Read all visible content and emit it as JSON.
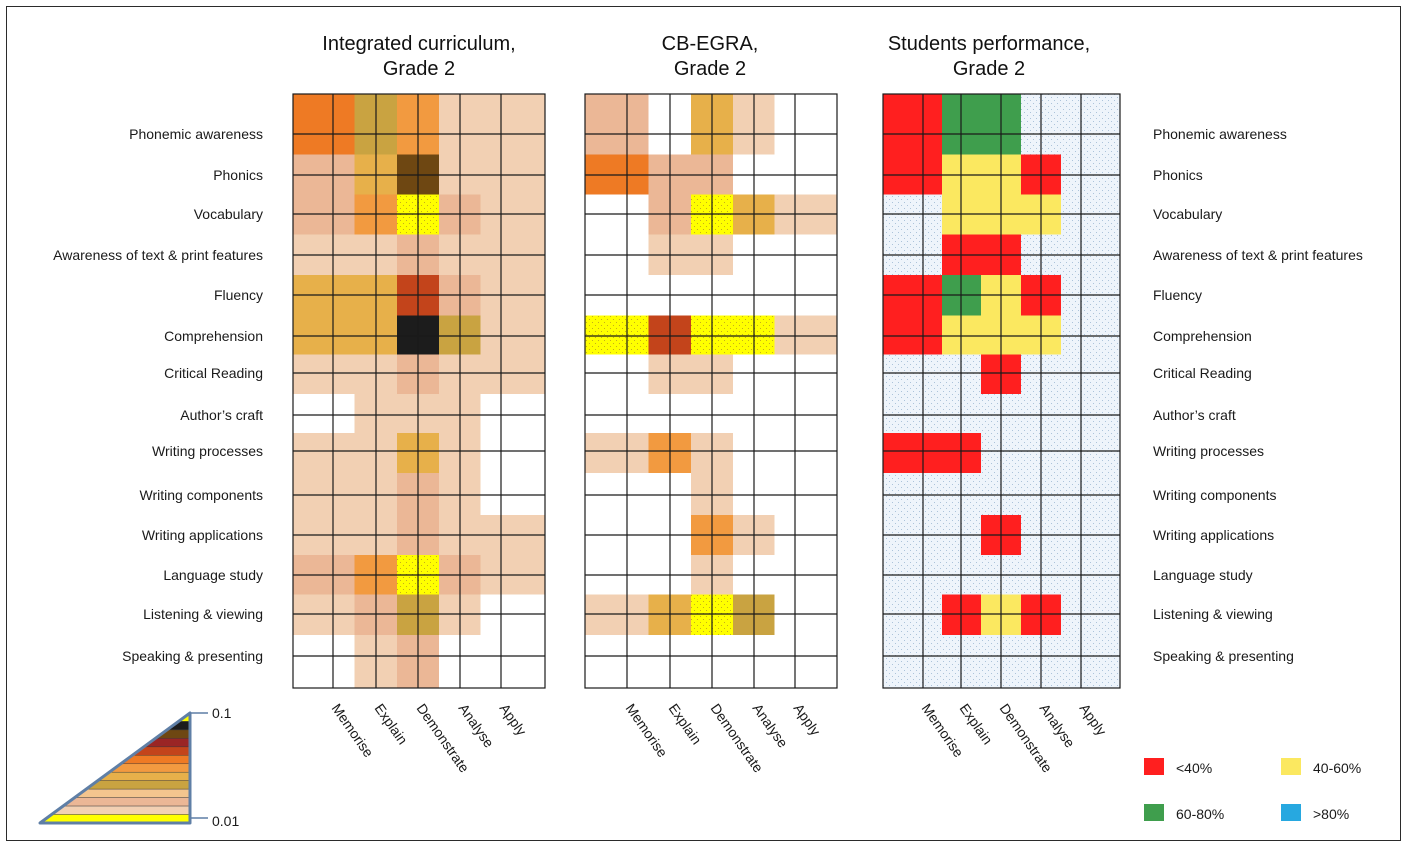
{
  "chart_data": {
    "type": "heatmap",
    "rows": [
      "Phonemic awareness",
      "Phonics",
      "Vocabulary",
      "Awareness of text & print features",
      "Fluency",
      "Comprehension",
      "Critical Reading",
      "Author’s craft",
      "Writing processes",
      "Writing components",
      "Writing applications",
      "Language study",
      "Listening & viewing",
      "Speaking & presenting"
    ],
    "columns": [
      "Memorise",
      "Explain",
      "Demonstrate",
      "Analyse",
      "Apply"
    ],
    "panels": [
      {
        "title": "Integrated curriculum,\nGrade 2",
        "scale": "density",
        "density": [
          [
            0.06,
            0.03,
            0.05,
            0.01,
            0.01
          ],
          [
            0.02,
            0.04,
            0.08,
            0.01,
            0.01
          ],
          [
            0.02,
            0.05,
            0.1,
            0.02,
            0.01
          ],
          [
            0.01,
            0.01,
            0.02,
            0.01,
            0.01
          ],
          [
            0.04,
            0.04,
            0.07,
            0.02,
            0.01
          ],
          [
            0.04,
            0.04,
            0.09,
            0.03,
            0.01
          ],
          [
            0.01,
            0.01,
            0.02,
            0.01,
            0.01
          ],
          [
            0.0,
            0.01,
            0.01,
            0.01,
            0.0
          ],
          [
            0.01,
            0.01,
            0.04,
            0.01,
            0.0
          ],
          [
            0.01,
            0.01,
            0.02,
            0.01,
            0.0
          ],
          [
            0.01,
            0.01,
            0.02,
            0.01,
            0.01
          ],
          [
            0.02,
            0.05,
            0.1,
            0.02,
            0.01
          ],
          [
            0.01,
            0.02,
            0.03,
            0.01,
            0.0
          ],
          [
            0.0,
            0.01,
            0.02,
            0.0,
            0.0
          ]
        ]
      },
      {
        "title": "CB-EGRA,\nGrade 2",
        "scale": "density",
        "density": [
          [
            0.02,
            0.0,
            0.04,
            0.01,
            0.0
          ],
          [
            0.06,
            0.02,
            0.02,
            0.0,
            0.0
          ],
          [
            0.0,
            0.02,
            0.1,
            0.04,
            0.01
          ],
          [
            0.0,
            0.01,
            0.01,
            0.0,
            0.0
          ],
          [
            0.0,
            0.0,
            0.0,
            0.0,
            0.0
          ],
          [
            0.1,
            0.07,
            0.1,
            0.1,
            0.01
          ],
          [
            0.0,
            0.01,
            0.01,
            0.0,
            0.0
          ],
          [
            0.0,
            0.0,
            0.0,
            0.0,
            0.0
          ],
          [
            0.01,
            0.05,
            0.01,
            0.0,
            0.0
          ],
          [
            0.0,
            0.0,
            0.01,
            0.0,
            0.0
          ],
          [
            0.0,
            0.0,
            0.05,
            0.01,
            0.0
          ],
          [
            0.0,
            0.0,
            0.01,
            0.0,
            0.0
          ],
          [
            0.01,
            0.04,
            0.1,
            0.03,
            0.0
          ],
          [
            0.0,
            0.0,
            0.0,
            0.0,
            0.0
          ]
        ]
      },
      {
        "title": "Students performance,\nGrade 2",
        "scale": "performance",
        "performance_band": [
          [
            "<40%",
            "60-80%",
            "60-80%",
            "-",
            "-"
          ],
          [
            "<40%",
            "40-60%",
            "40-60%",
            "<40%",
            "-"
          ],
          [
            "-",
            "40-60%",
            "40-60%",
            "40-60%",
            "-"
          ],
          [
            "-",
            "<40%",
            "<40%",
            "-",
            "-"
          ],
          [
            "<40%",
            "60-80%",
            "40-60%",
            "<40%",
            "-"
          ],
          [
            "<40%",
            "40-60%",
            "40-60%",
            "40-60%",
            "-"
          ],
          [
            "-",
            "-",
            "<40%",
            "-",
            "-"
          ],
          [
            "-",
            "-",
            "-",
            "-",
            "-"
          ],
          [
            "<40%",
            "<40%",
            "-",
            "-",
            "-"
          ],
          [
            "-",
            "-",
            "-",
            "-",
            "-"
          ],
          [
            "-",
            "-",
            "<40%",
            "-",
            "-"
          ],
          [
            "-",
            "-",
            "-",
            "-",
            "-"
          ],
          [
            "-",
            "<40%",
            "40-60%",
            "<40%",
            "-"
          ],
          [
            "-",
            "-",
            "-",
            "-",
            "-"
          ]
        ]
      }
    ],
    "density_legend": {
      "max": "0.1",
      "min": "0.01",
      "colors": [
        "#ffff00",
        "#1c1c1c",
        "#6e4712",
        "#9a2525",
        "#c3441b",
        "#ee7a24",
        "#f29a40",
        "#e7b04a",
        "#c9a341",
        "#f3c58e",
        "#ebb796",
        "#f2d0b3",
        "#ffff00"
      ]
    },
    "performance_legend": [
      {
        "label": "<40%",
        "color": "#ff1f1f"
      },
      {
        "label": "40-60%",
        "color": "#fbe860"
      },
      {
        "label": "60-80%",
        "color": "#3f9e4d"
      },
      {
        "label": ">80%",
        "color": "#27a8e0"
      }
    ]
  }
}
